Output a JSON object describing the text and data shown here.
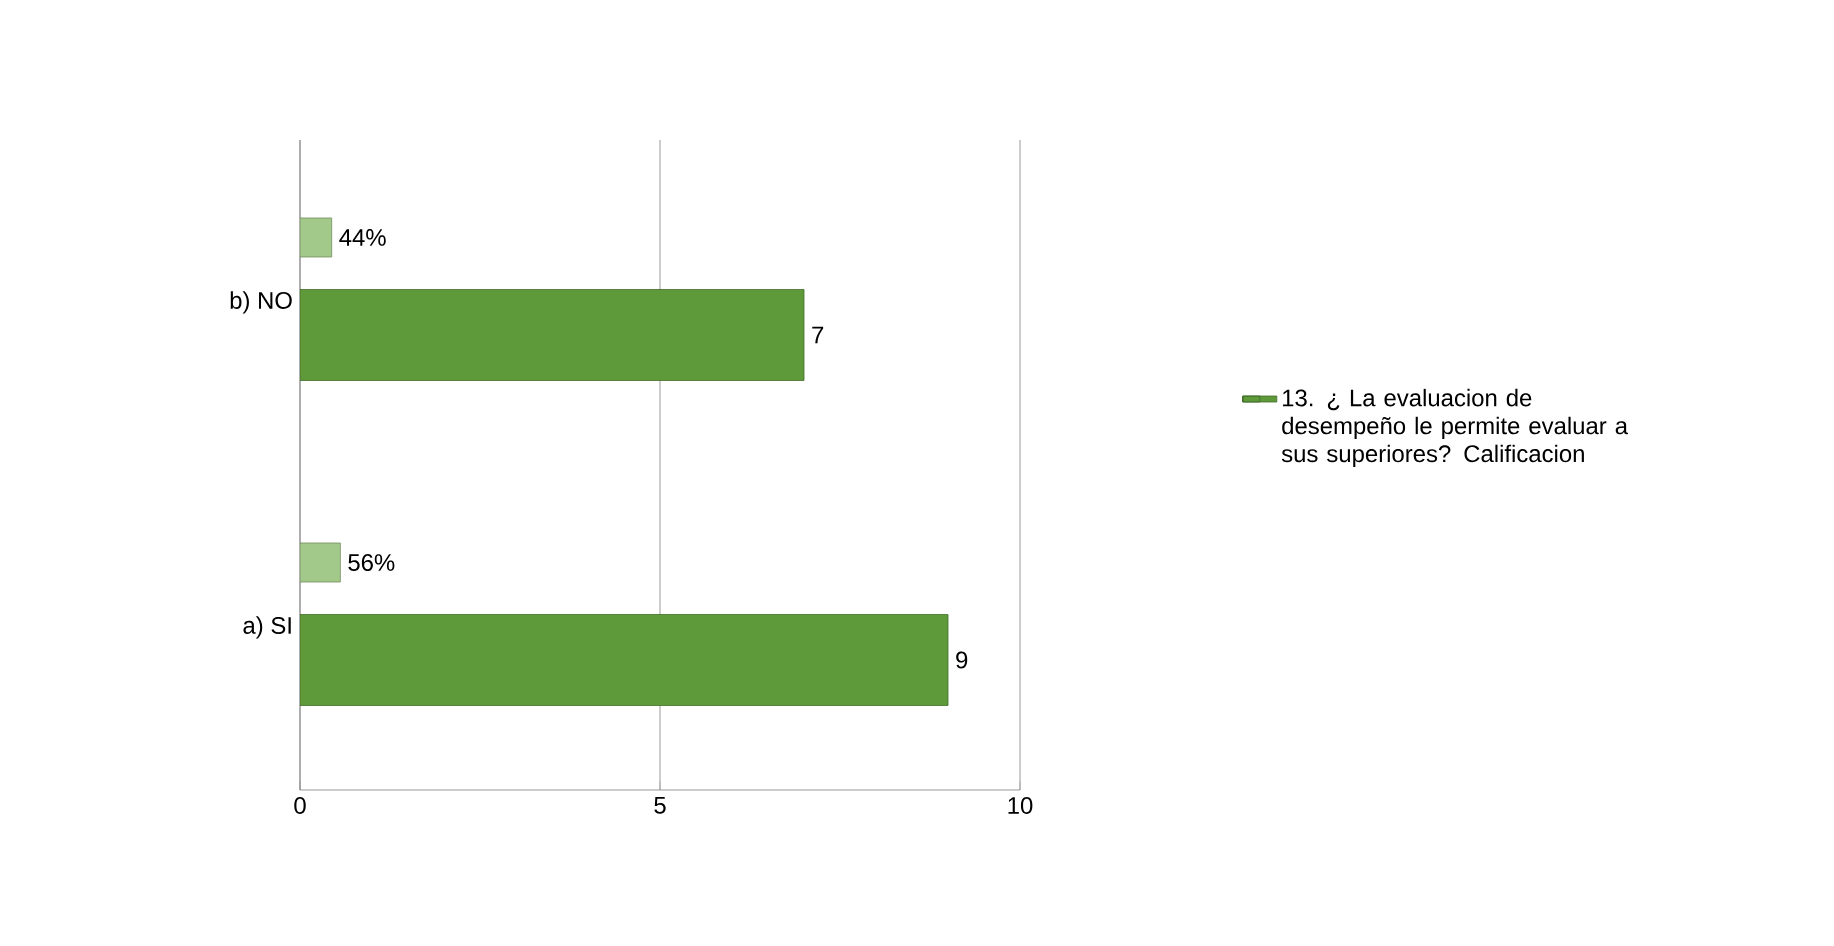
{
  "chart_data": {
    "type": "bar",
    "orientation": "horizontal",
    "categories": [
      "b)  NO",
      "a) SI"
    ],
    "series": [
      {
        "color": "#a3c98a",
        "values": [
          0.44,
          0.56
        ],
        "value_labels": [
          "44%",
          "56%"
        ]
      },
      {
        "name": "13.    ¿ La evaluacion de desempeño le permite evaluar a sus superiores? Calificacion",
        "color": "#5e9a3a",
        "values": [
          7,
          9
        ],
        "value_labels": [
          "7",
          "9"
        ]
      }
    ],
    "xlim": [
      0,
      10
    ],
    "xticks": [
      0,
      5,
      10
    ],
    "grid": "x",
    "legend": "right"
  }
}
